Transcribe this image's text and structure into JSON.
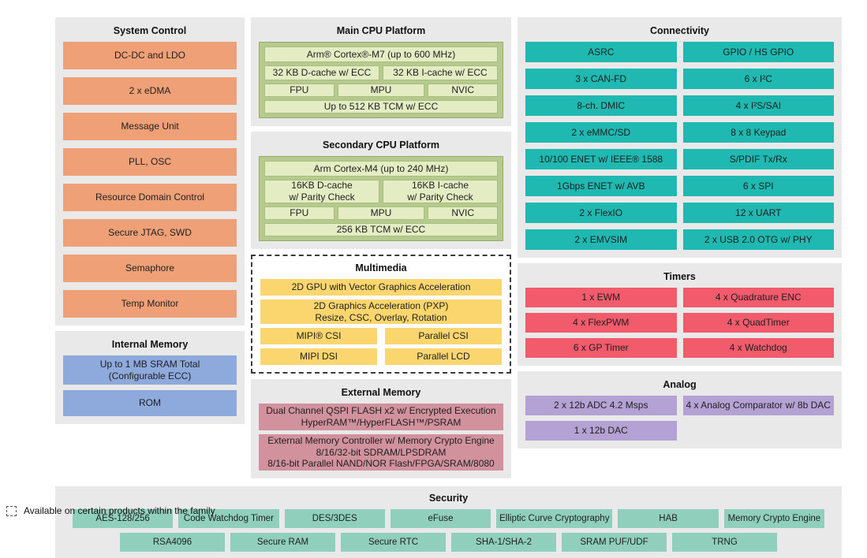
{
  "colors": {
    "panel": "#e9e9e9",
    "orange": "#f0a077",
    "blue": "#8ea9db",
    "green_container": "#b6ca90",
    "green_block": "#e3ecc2",
    "teal": "#1fb9b1",
    "yellow": "#fbd56e",
    "pink": "#d2929d",
    "red": "#f25b6c",
    "purple": "#b5a2d4",
    "mint": "#90cfbb",
    "text": "#1f1f1f"
  },
  "system_control": {
    "title": "System Control",
    "items": [
      "DC-DC and LDO",
      "2 x eDMA",
      "Message Unit",
      "PLL, OSC",
      "Resource Domain Control",
      "Secure JTAG, SWD",
      "Semaphore",
      "Temp Monitor"
    ]
  },
  "internal_memory": {
    "title": "Internal Memory",
    "items": [
      "Up to 1 MB SRAM Total\n(Configurable ECC)",
      "ROM"
    ]
  },
  "main_cpu": {
    "title": "Main CPU Platform",
    "core": "Arm® Cortex®-M7 (up to 600 MHz)",
    "dcache": "32 KB D-cache w/ ECC",
    "icache": "32 KB I-cache w/ ECC",
    "fpu": "FPU",
    "mpu": "MPU",
    "nvic": "NVIC",
    "tcm": "Up to 512 KB TCM w/ ECC"
  },
  "secondary_cpu": {
    "title": "Secondary CPU Platform",
    "core": "Arm Cortex-M4 (up to 240 MHz)",
    "dcache": "16KB D-cache\nw/ Parity Check",
    "icache": "16KB I-cache\nw/ Parity Check",
    "fpu": "FPU",
    "mpu": "MPU",
    "nvic": "NVIC",
    "tcm": "256 KB TCM w/ ECC"
  },
  "multimedia": {
    "title": "Multimedia",
    "gpu": "2D GPU with Vector Graphics Acceleration",
    "pxp": "2D Graphics Acceleration (PXP)\nResize, CSC, Overlay, Rotation",
    "grid": [
      "MIPI® CSI",
      "Parallel CSI",
      "MIPI DSI",
      "Parallel LCD"
    ]
  },
  "external_memory": {
    "title": "External Memory",
    "items": [
      "Dual Channel QSPI FLASH x2 w/ Encrypted Execution\nHyperRAM™/HyperFLASH™/PSRAM",
      "External Memory Controller w/ Memory Crypto Engine\n8/16/32-bit SDRAM/LPSDRAM\n8/16-bit Parallel NAND/NOR Flash/FPGA/SRAM/8080"
    ]
  },
  "connectivity": {
    "title": "Connectivity",
    "left": [
      "ASRC",
      "3 x CAN-FD",
      "8-ch. DMIC",
      "2 x eMMC/SD",
      "10/100 ENET w/ IEEE® 1588",
      "1Gbps ENET w/ AVB",
      "2 x FlexIO",
      "2 x EMVSIM"
    ],
    "right": [
      "GPIO / HS GPIO",
      "6 x I²C",
      "4 x I²S/SAI",
      "8 x 8 Keypad",
      "S/PDIF Tx/Rx",
      "6 x SPI",
      "12 x UART",
      "2 x USB 2.0 OTG w/ PHY"
    ]
  },
  "timers": {
    "title": "Timers",
    "left": [
      "1 x EWM",
      "4 x FlexPWM",
      "6 x GP Timer"
    ],
    "right": [
      "4 x Quadrature ENC",
      "4 x QuadTimer",
      "4 x Watchdog"
    ]
  },
  "analog": {
    "title": "Analog",
    "row1": [
      "2 x 12b ADC 4.2 Msps",
      "4 x Analog Comparator w/ 8b DAC"
    ],
    "row2": [
      "1 x 12b DAC"
    ]
  },
  "security": {
    "title": "Security",
    "row1": [
      "AES-128/256",
      "Code Watchdog Timer",
      "DES/3DES",
      "eFuse",
      "Elliptic Curve Cryptography",
      "HAB",
      "Memory Crypto Engine"
    ],
    "row2": [
      "RSA4096",
      "Secure RAM",
      "Secure RTC",
      "SHA-1/SHA-2",
      "SRAM PUF/UDF",
      "TRNG"
    ]
  },
  "legend": {
    "label": "Available on certain products within the family"
  }
}
